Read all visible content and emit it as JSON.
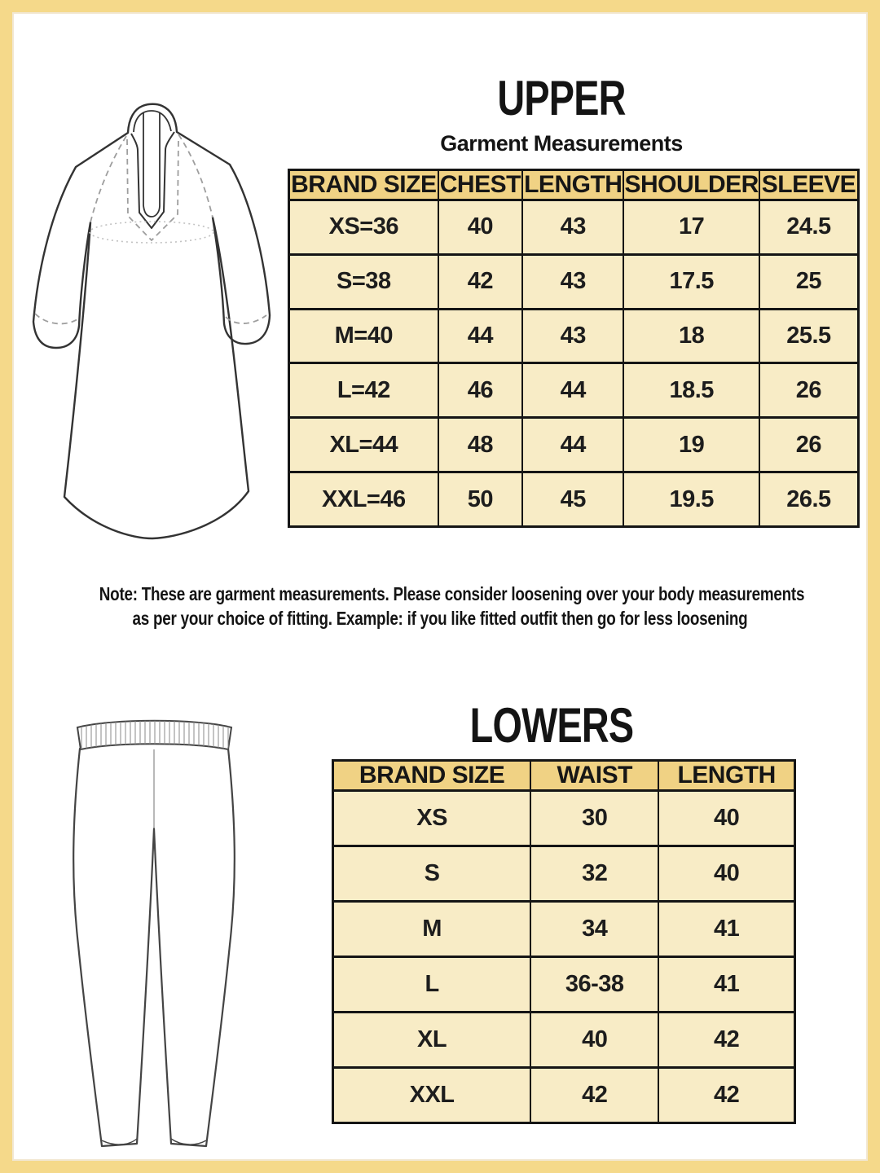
{
  "colors": {
    "frame": "#f5d98a",
    "table_header_bg": "#f0d284",
    "table_row_bg": "#f8ecc6",
    "table_border": "#151515",
    "text": "#1d1d1d"
  },
  "upper_section": {
    "title": "UPPER",
    "subtitle": "Garment Measurements",
    "illustration": "kurta-line-drawing",
    "table": {
      "headers": [
        "BRAND SIZE",
        "CHEST",
        "LENGTH",
        "SHOULDER",
        "SLEEVE"
      ],
      "rows": [
        [
          "XS=36",
          "40",
          "43",
          "17",
          "24.5"
        ],
        [
          "S=38",
          "42",
          "43",
          "17.5",
          "25"
        ],
        [
          "M=40",
          "44",
          "43",
          "18",
          "25.5"
        ],
        [
          "L=42",
          "46",
          "44",
          "18.5",
          "26"
        ],
        [
          "XL=44",
          "48",
          "44",
          "19",
          "26"
        ],
        [
          "XXL=46",
          "50",
          "45",
          "19.5",
          "26.5"
        ]
      ]
    }
  },
  "note": {
    "lines": [
      "Note: These are garment measurements. Please consider loosening over your body measurements",
      "as per your choice of fitting. Example: if you like fitted outfit then go for less loosening"
    ]
  },
  "lower_section": {
    "title": "LOWERS",
    "illustration": "pants-line-drawing",
    "table": {
      "headers": [
        "BRAND SIZE",
        "WAIST",
        "LENGTH"
      ],
      "rows": [
        [
          "XS",
          "30",
          "40"
        ],
        [
          "S",
          "32",
          "40"
        ],
        [
          "M",
          "34",
          "41"
        ],
        [
          "L",
          "36-38",
          "41"
        ],
        [
          "XL",
          "40",
          "42"
        ],
        [
          "XXL",
          "42",
          "42"
        ]
      ]
    }
  }
}
